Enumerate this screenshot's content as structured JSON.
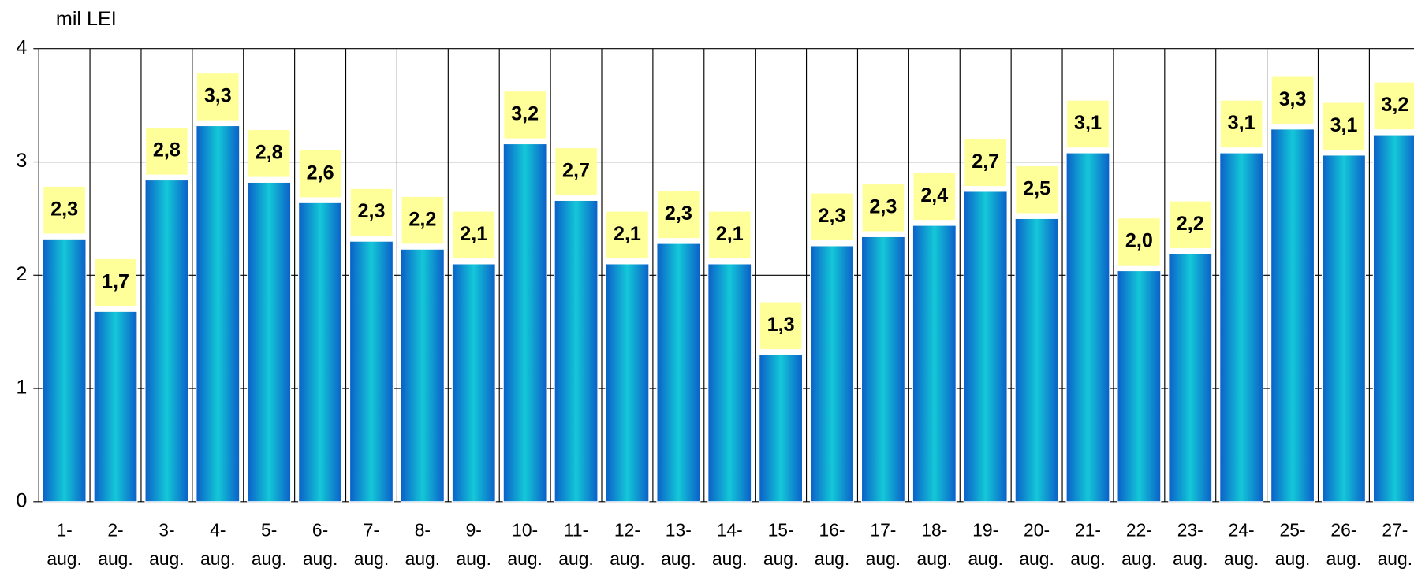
{
  "chart_data": {
    "type": "bar",
    "y_axis_label": "mil LEI",
    "categories": [
      "1-aug.",
      "2-aug.",
      "3-aug.",
      "4-aug.",
      "5-aug.",
      "6-aug.",
      "7-aug.",
      "8-aug.",
      "9-aug.",
      "10-aug.",
      "11-aug.",
      "12-aug.",
      "13-aug.",
      "14-aug.",
      "15-aug.",
      "16-aug.",
      "17-aug.",
      "18-aug.",
      "19-aug.",
      "20-aug.",
      "21-aug.",
      "22-aug.",
      "23-aug.",
      "24-aug.",
      "25-aug.",
      "26-aug.",
      "27-aug."
    ],
    "values": [
      2.32,
      1.68,
      2.84,
      3.32,
      2.82,
      2.64,
      2.3,
      2.23,
      2.1,
      3.16,
      2.66,
      2.1,
      2.28,
      2.1,
      1.3,
      2.26,
      2.34,
      2.44,
      2.74,
      2.5,
      3.08,
      2.04,
      2.19,
      3.08,
      3.29,
      3.06,
      3.24
    ],
    "value_labels": [
      "2,3",
      "1,7",
      "2,8",
      "3,3",
      "2,8",
      "2,6",
      "2,3",
      "2,2",
      "2,1",
      "3,2",
      "2,7",
      "2,1",
      "2,3",
      "2,1",
      "1,3",
      "2,3",
      "2,3",
      "2,4",
      "2,7",
      "2,5",
      "3,1",
      "2,0",
      "2,2",
      "3,1",
      "3,3",
      "3,1",
      "3,2"
    ],
    "color": "#0a7fd8",
    "label_box_color": "#ffff99",
    "ylim": [
      0,
      4
    ],
    "yticks": [
      0,
      1,
      2,
      3,
      4
    ],
    "grid": true
  }
}
